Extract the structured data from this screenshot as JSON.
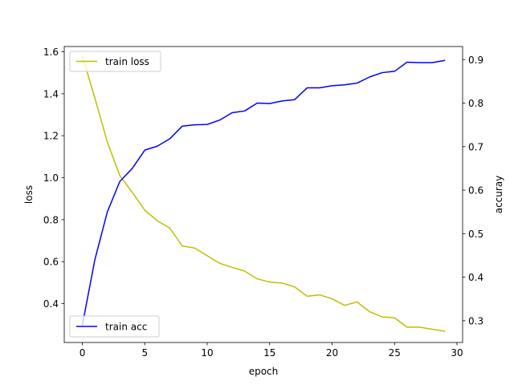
{
  "chart_data": {
    "type": "line",
    "xlabel": "epoch",
    "ylabel_left": "loss",
    "ylabel_right": "accuray",
    "xlim": [
      -1.45,
      30.45
    ],
    "ylim_left": [
      0.215,
      1.625
    ],
    "ylim_right": [
      0.25,
      0.93
    ],
    "xticks": [
      0,
      5,
      10,
      15,
      20,
      25,
      30
    ],
    "yticks_left": [
      0.4,
      0.6,
      0.8,
      1.0,
      1.2,
      1.4,
      1.6
    ],
    "yticks_left_labels": [
      "0.4",
      "0.6",
      "0.8",
      "1.0",
      "1.2",
      "1.4",
      "1.6"
    ],
    "yticks_right": [
      0.3,
      0.4,
      0.5,
      0.6,
      0.7,
      0.8,
      0.9
    ],
    "yticks_right_labels": [
      "0.3",
      "0.4",
      "0.5",
      "0.6",
      "0.7",
      "0.8",
      "0.9"
    ],
    "grid": false,
    "x": [
      0,
      1,
      2,
      3,
      4,
      5,
      6,
      7,
      8,
      9,
      10,
      11,
      12,
      13,
      14,
      15,
      16,
      17,
      18,
      19,
      20,
      21,
      22,
      23,
      24,
      25,
      26,
      27,
      28,
      29
    ],
    "series": [
      {
        "name": "train loss",
        "axis": "left",
        "color": "#bfbf00",
        "legend_position": "upper left",
        "values": [
          1.58,
          1.38,
          1.17,
          1.01,
          0.93,
          0.845,
          0.795,
          0.76,
          0.675,
          0.665,
          0.628,
          0.592,
          0.573,
          0.555,
          0.518,
          0.503,
          0.498,
          0.48,
          0.435,
          0.442,
          0.423,
          0.392,
          0.408,
          0.362,
          0.337,
          0.333,
          0.288,
          0.288,
          0.278,
          0.269
        ]
      },
      {
        "name": "train acc",
        "axis": "right",
        "color": "#0000ff",
        "legend_position": "lower left",
        "values": [
          0.29,
          0.44,
          0.55,
          0.62,
          0.65,
          0.692,
          0.701,
          0.718,
          0.747,
          0.75,
          0.751,
          0.761,
          0.778,
          0.782,
          0.8,
          0.799,
          0.805,
          0.808,
          0.835,
          0.835,
          0.84,
          0.842,
          0.846,
          0.86,
          0.87,
          0.873,
          0.894,
          0.893,
          0.893,
          0.898
        ]
      }
    ]
  }
}
